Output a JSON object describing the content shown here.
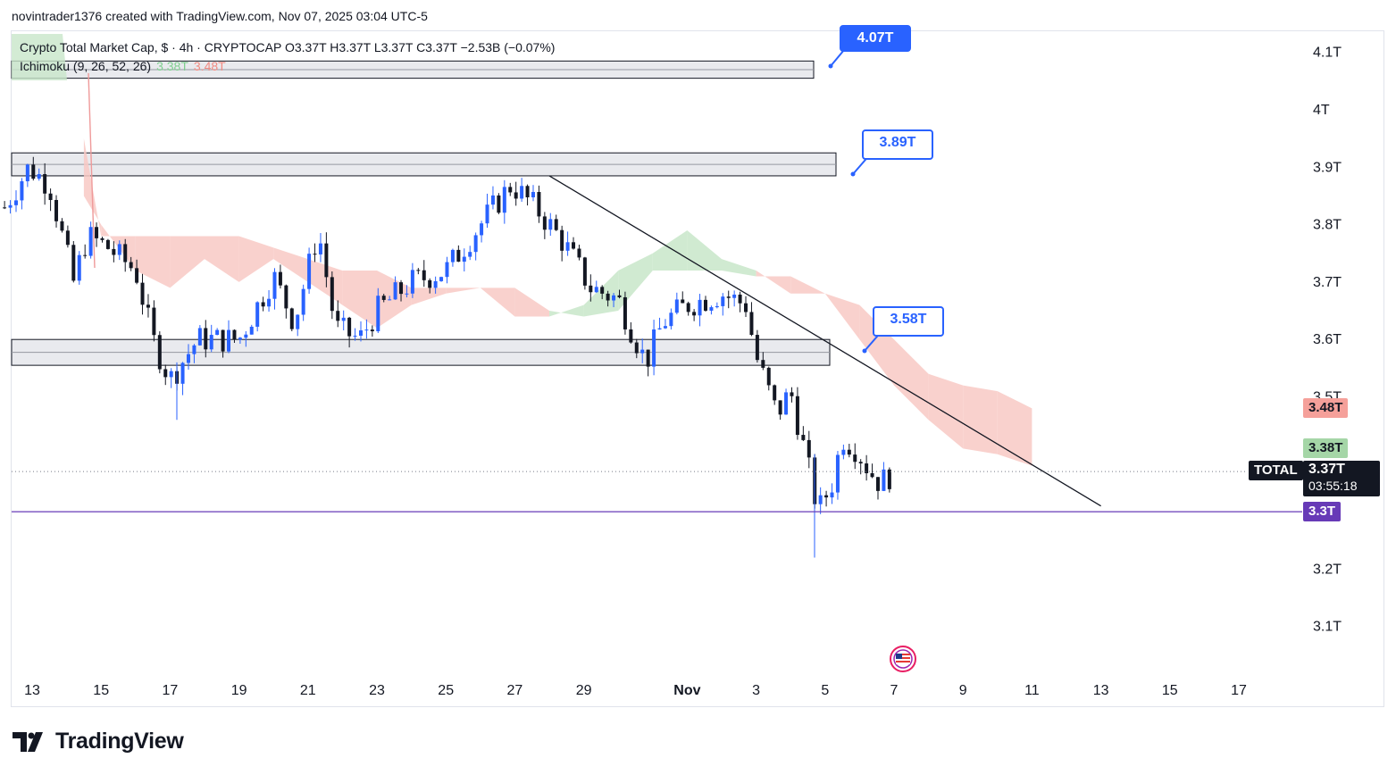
{
  "header": {
    "author_line": "novintrader1376 created with TradingView.com, Nov 07, 2025 03:04 UTC-5"
  },
  "legend": {
    "main": "Crypto Total Market Cap, $ · 4h · CRYPTOCAP  O3.37T  H3.37T  L3.37T  C3.37T  −2.53B (−0.07%)",
    "ichimoku": "Ichimoku (9, 26, 52, 26)",
    "ichimoku_val1": "3.38T",
    "ichimoku_val2": "3.48T"
  },
  "price_scale": {
    "labels": [
      "4.1T",
      "4T",
      "3.9T",
      "3.8T",
      "3.7T",
      "3.6T",
      "3.5T",
      "3.2T",
      "3.1T"
    ]
  },
  "price_tags": {
    "span_b": "3.48T",
    "span_a": "3.38T",
    "symbol": "TOTAL",
    "last_price": "3.37T",
    "countdown": "03:55:18",
    "hline": "3.3T"
  },
  "time_scale": {
    "labels": [
      "13",
      "15",
      "17",
      "19",
      "21",
      "23",
      "25",
      "27",
      "29",
      "Nov",
      "3",
      "5",
      "7",
      "9",
      "11",
      "13",
      "15",
      "17"
    ]
  },
  "callouts": {
    "c1": "4.07T",
    "c2": "3.89T",
    "c3": "3.58T"
  },
  "brand": {
    "name": "TradingView"
  },
  "colors": {
    "bull": "#2962ff",
    "bear": "#131722",
    "cloud_green": "#c8e6c9",
    "cloud_red": "#f8c9c4",
    "hline": "#673ab7",
    "zone": "#d1d4dc"
  },
  "chart_data": {
    "type": "candlestick",
    "title": "Crypto Total Market Cap, $ · 4h · CRYPTOCAP",
    "x_axis": [
      "13",
      "15",
      "17",
      "19",
      "21",
      "23",
      "25",
      "27",
      "29",
      "Nov",
      "3",
      "5",
      "7",
      "9",
      "11",
      "13",
      "15",
      "17"
    ],
    "ylim": [
      3.05,
      4.17
    ],
    "y_unit": "T",
    "horizontal_zones": [
      [
        4.055,
        4.085
      ],
      [
        3.885,
        3.925
      ],
      [
        3.555,
        3.6
      ]
    ],
    "horizontal_line": 3.3,
    "last_price": 3.37,
    "trendline": {
      "from": [
        "Oct 28",
        3.885
      ],
      "to": [
        "Nov 13",
        3.31
      ]
    },
    "callout_prices": [
      4.07,
      3.89,
      3.58
    ],
    "anchors": [
      {
        "day": "Oct 12.2",
        "close": 3.83
      },
      {
        "day": "Oct 12.9",
        "close": 3.9
      },
      {
        "day": "Oct 13.5",
        "close": 3.87
      },
      {
        "day": "Oct 14.2",
        "close": 3.7
      },
      {
        "day": "Oct 14.6",
        "close": 3.78
      },
      {
        "day": "Oct 15.2",
        "close": 3.76
      },
      {
        "day": "Oct 16",
        "close": 3.72
      },
      {
        "day": "Oct 16.5",
        "close": 3.6
      },
      {
        "day": "Oct 17",
        "close": 3.53
      },
      {
        "day": "Oct 17.8",
        "close": 3.6
      },
      {
        "day": "Oct 19",
        "close": 3.6
      },
      {
        "day": "Oct 20",
        "close": 3.71
      },
      {
        "day": "Oct 20.6",
        "close": 3.63
      },
      {
        "day": "Oct 21.3",
        "close": 3.79
      },
      {
        "day": "Oct 21.8",
        "close": 3.62
      },
      {
        "day": "Oct 22.5",
        "close": 3.6
      },
      {
        "day": "Oct 23",
        "close": 3.65
      },
      {
        "day": "Oct 24",
        "close": 3.7
      },
      {
        "day": "Oct 25",
        "close": 3.72
      },
      {
        "day": "Oct 26",
        "close": 3.8
      },
      {
        "day": "Oct 26.9",
        "close": 3.87
      },
      {
        "day": "Oct 27.6",
        "close": 3.83
      },
      {
        "day": "Oct 28.4",
        "close": 3.77
      },
      {
        "day": "Oct 29.2",
        "close": 3.69
      },
      {
        "day": "Oct 30",
        "close": 3.67
      },
      {
        "day": "Oct 30.8",
        "close": 3.56
      },
      {
        "day": "Oct 31.3",
        "close": 3.63
      },
      {
        "day": "Nov 1",
        "close": 3.66
      },
      {
        "day": "Nov 2",
        "close": 3.68
      },
      {
        "day": "Nov 2.7",
        "close": 3.66
      },
      {
        "day": "Nov 3",
        "close": 3.57
      },
      {
        "day": "Nov 3.6",
        "close": 3.47
      },
      {
        "day": "Nov 4",
        "close": 3.51
      },
      {
        "day": "Nov 4.5",
        "close": 3.38
      },
      {
        "day": "Nov 4.8",
        "close": 3.3
      },
      {
        "day": "Nov 5.2",
        "close": 3.35
      },
      {
        "day": "Nov 5.5",
        "close": 3.43
      },
      {
        "day": "Nov 5.9",
        "close": 3.41
      },
      {
        "day": "Nov 6.3",
        "close": 3.37
      },
      {
        "day": "Nov 6.6",
        "close": 3.35
      },
      {
        "day": "Nov 7",
        "close": 3.37
      }
    ],
    "cloud": [
      {
        "day": "Oct 14.5",
        "a": 3.85,
        "b": 3.95
      },
      {
        "day": "Oct 15",
        "a": 3.8,
        "b": 3.78
      },
      {
        "day": "Oct 16",
        "a": 3.72,
        "b": 3.78
      },
      {
        "day": "Oct 17",
        "a": 3.69,
        "b": 3.78
      },
      {
        "day": "Oct 18",
        "a": 3.74,
        "b": 3.78
      },
      {
        "day": "Oct 19",
        "a": 3.7,
        "b": 3.78
      },
      {
        "day": "Oct 20",
        "a": 3.74,
        "b": 3.76
      },
      {
        "day": "Oct 21",
        "a": 3.7,
        "b": 3.74
      },
      {
        "day": "Oct 22",
        "a": 3.66,
        "b": 3.72
      },
      {
        "day": "Oct 23",
        "a": 3.62,
        "b": 3.72
      },
      {
        "day": "Oct 24",
        "a": 3.66,
        "b": 3.69
      },
      {
        "day": "Oct 25",
        "a": 3.68,
        "b": 3.69
      },
      {
        "day": "Oct 26",
        "a": 3.69,
        "b": 3.69
      },
      {
        "day": "Oct 27",
        "a": 3.64,
        "b": 3.69
      },
      {
        "day": "Oct 28",
        "a": 3.64,
        "b": 3.65
      },
      {
        "day": "Oct 29",
        "a": 3.66,
        "b": 3.64
      },
      {
        "day": "Oct 30",
        "a": 3.72,
        "b": 3.65
      },
      {
        "day": "Oct 31",
        "a": 3.75,
        "b": 3.72
      },
      {
        "day": "Nov 1",
        "a": 3.79,
        "b": 3.72
      },
      {
        "day": "Nov 2",
        "a": 3.74,
        "b": 3.72
      },
      {
        "day": "Nov 3",
        "a": 3.72,
        "b": 3.71
      },
      {
        "day": "Nov 4",
        "a": 3.68,
        "b": 3.71
      },
      {
        "day": "Nov 5",
        "a": 3.68,
        "b": 3.68
      },
      {
        "day": "Nov 6",
        "a": 3.6,
        "b": 3.66
      },
      {
        "day": "Nov 7",
        "a": 3.52,
        "b": 3.6
      },
      {
        "day": "Nov 8",
        "a": 3.46,
        "b": 3.54
      },
      {
        "day": "Nov 9",
        "a": 3.41,
        "b": 3.52
      },
      {
        "day": "Nov 10",
        "a": 3.4,
        "b": 3.51
      },
      {
        "day": "Nov 11",
        "a": 3.38,
        "b": 3.48
      }
    ]
  }
}
